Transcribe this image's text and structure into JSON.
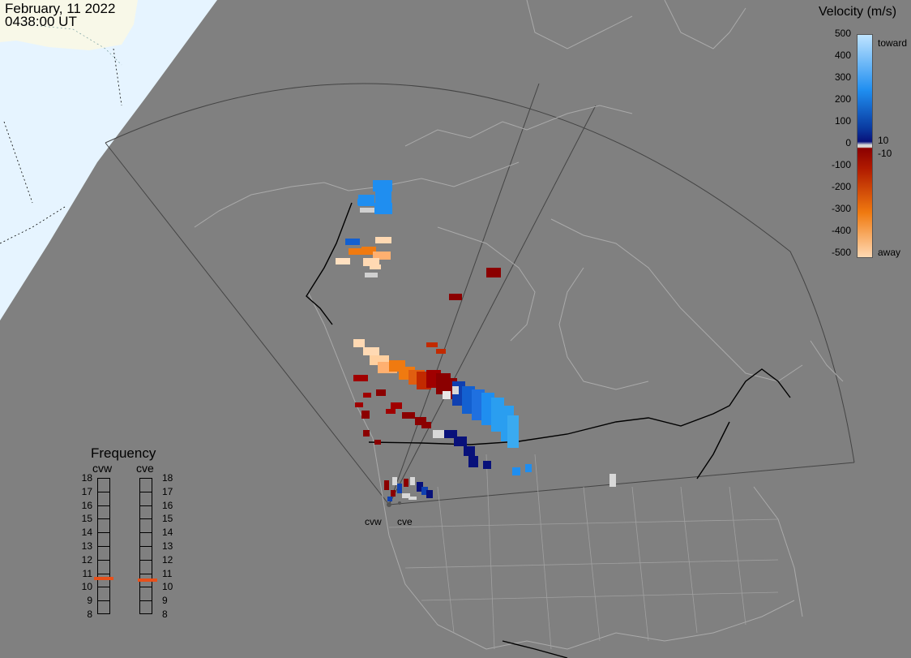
{
  "header": {
    "date": "February, 11 2022",
    "time": "0438:00 UT"
  },
  "legend": {
    "title": "Velocity (m/s)",
    "ticks": [
      "500",
      "400",
      "300",
      "200",
      "100",
      "0",
      "-100",
      "-200",
      "-300",
      "-400",
      "-500"
    ],
    "toward_label": "toward",
    "away_label": "away",
    "pos_threshold": "10",
    "neg_threshold": "-10",
    "colors": {
      "toward_high": "#bfe4ff",
      "toward_mid": "#1f8ef0",
      "toward_low": "#08117a",
      "zero": "#d8d8d8",
      "away_low": "#8b0000",
      "away_mid": "#f07a10",
      "away_high": "#ffd9b3"
    }
  },
  "frequency": {
    "title": "Frequency",
    "radars": [
      "cvw",
      "cve"
    ],
    "scale": [
      "18",
      "17",
      "16",
      "15",
      "14",
      "13",
      "12",
      "11",
      "10",
      "9",
      "8"
    ],
    "unit_range": [
      8,
      18
    ],
    "cvw_value": 10.6,
    "cve_value": 10.5,
    "marker_color": "#e8501a"
  },
  "sites": {
    "labels": [
      "cvw",
      "cve"
    ]
  },
  "map": {
    "ocean_color": "#e6f4ff",
    "land_light_color": "#f8f8e8",
    "shade_color": "#808080",
    "border_color": "#000000",
    "outline_color": "#b0b0b0"
  }
}
